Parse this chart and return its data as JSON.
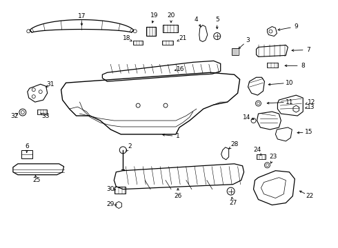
{
  "background_color": "#ffffff",
  "fig_w": 4.9,
  "fig_h": 3.6,
  "dpi": 100,
  "lw_main": 0.9,
  "lw_thin": 0.5,
  "fontsize": 6.5
}
